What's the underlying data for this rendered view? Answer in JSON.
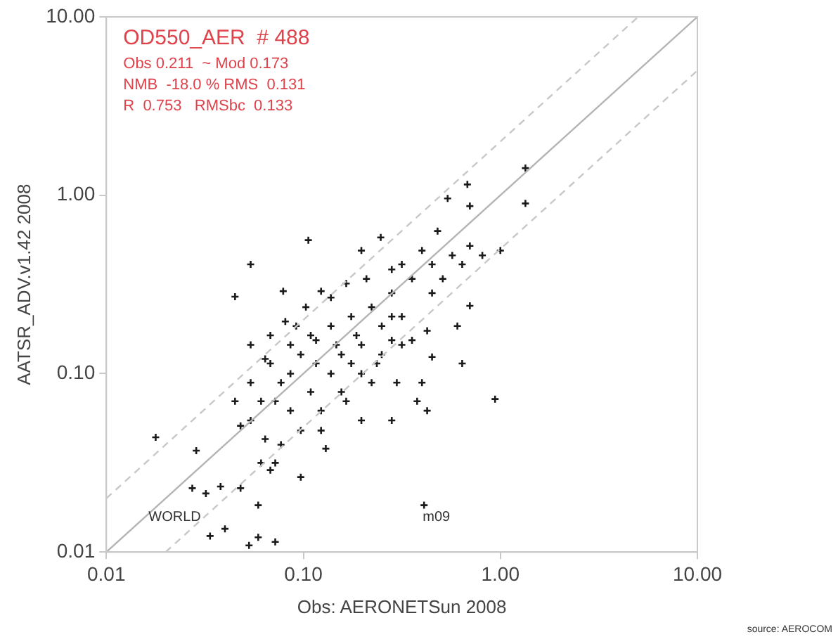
{
  "chart_data": {
    "type": "scatter",
    "title": "OD550_AER  # 488",
    "xlabel": "Obs: AERONETSun 2008",
    "ylabel": "AATSR_ADV.v1.42 2008",
    "annotations": [
      "Obs 0.211  ~ Mod 0.173",
      "NMB  -18.0 % RMS  0.131",
      "R  0.753   RMSbc  0.133",
      "WORLD",
      "m09",
      "source: AEROCOM"
    ],
    "log": "xy",
    "grid": false,
    "legend": false,
    "xlim": [
      0.01,
      10
    ],
    "ylim": [
      0.01,
      10
    ],
    "xticks": [
      {
        "value": 0.01,
        "label": "0.01"
      },
      {
        "value": 0.1,
        "label": "0.10"
      },
      {
        "value": 1,
        "label": "1.00"
      },
      {
        "value": 10,
        "label": "10.00"
      }
    ],
    "yticks": [
      {
        "value": 0.01,
        "label": "0.01"
      },
      {
        "value": 0.1,
        "label": "0.10"
      },
      {
        "value": 1,
        "label": "1.00"
      },
      {
        "value": 10,
        "label": "10.00"
      }
    ],
    "series": [
      {
        "type": "line",
        "marker": "none",
        "color": "#b4b4b4",
        "line_style": "solid",
        "x": [
          0.01,
          10
        ],
        "values": [
          0.01,
          10
        ]
      },
      {
        "type": "line",
        "marker": "none",
        "color": "#c8c8c8",
        "line_style": "dashed",
        "x": [
          0.01,
          5
        ],
        "values": [
          0.02,
          10
        ]
      },
      {
        "type": "line",
        "marker": "none",
        "color": "#c8c8c8",
        "line_style": "dashed",
        "x": [
          0.02,
          10
        ],
        "values": [
          0.01,
          5
        ]
      },
      {
        "type": "scatter",
        "marker": "cross",
        "color": "#1a1a1a",
        "x": [
          1.34,
          1.34,
          0.68,
          0.54,
          0.7,
          0.106,
          0.054,
          0.045,
          0.079,
          0.123,
          0.197,
          0.247,
          0.48,
          0.7,
          1.0,
          0.7,
          0.64,
          0.94,
          0.0178,
          0.0286,
          0.41,
          0.0336,
          0.04,
          0.053,
          0.059,
          0.072,
          0.032,
          0.038,
          0.048,
          0.059,
          0.0273,
          0.068,
          0.097,
          0.13,
          0.197,
          0.281,
          0.425,
          0.378,
          0.298,
          0.4,
          0.45,
          0.605,
          0.425,
          0.316,
          0.25,
          0.197,
          0.156,
          0.123,
          0.097,
          0.077,
          0.061,
          0.048,
          0.045,
          0.054,
          0.068,
          0.086,
          0.109,
          0.138,
          0.175,
          0.222,
          0.281,
          0.356,
          0.45,
          0.57,
          0.316,
          0.4,
          0.281,
          0.209,
          0.165,
          0.138,
          0.103,
          0.081,
          0.068,
          0.054,
          0.064,
          0.086,
          0.116,
          0.156,
          0.197,
          0.25,
          0.316,
          0.186,
          0.147,
          0.116,
          0.097,
          0.077,
          0.061,
          0.054,
          0.064,
          0.086,
          0.109,
          0.138,
          0.175,
          0.236,
          0.281,
          0.356,
          0.45,
          0.51,
          0.64,
          0.81,
          0.281,
          0.222,
          0.165,
          0.072,
          0.123,
          0.072,
          0.092
        ],
        "values": [
          1.42,
          0.9,
          1.15,
          0.96,
          0.87,
          0.56,
          0.41,
          0.27,
          0.29,
          0.29,
          0.49,
          0.58,
          0.63,
          0.52,
          0.49,
          0.24,
          0.114,
          0.072,
          0.044,
          0.037,
          0.0183,
          0.0123,
          0.0135,
          0.0109,
          0.0121,
          0.0114,
          0.0213,
          0.0233,
          0.0228,
          0.0183,
          0.0228,
          0.0288,
          0.0263,
          0.038,
          0.0547,
          0.0547,
          0.062,
          0.07,
          0.089,
          0.089,
          0.124,
          0.185,
          0.174,
          0.145,
          0.128,
          0.1,
          0.079,
          0.062,
          0.048,
          0.04,
          0.0316,
          0.051,
          0.07,
          0.089,
          0.114,
          0.145,
          0.164,
          0.185,
          0.209,
          0.236,
          0.283,
          0.34,
          0.41,
          0.46,
          0.41,
          0.49,
          0.384,
          0.34,
          0.32,
          0.267,
          0.236,
          0.196,
          0.164,
          0.145,
          0.121,
          0.1,
          0.114,
          0.128,
          0.145,
          0.185,
          0.209,
          0.164,
          0.145,
          0.154,
          0.128,
          0.089,
          0.07,
          0.0547,
          0.043,
          0.062,
          0.079,
          0.1,
          0.114,
          0.114,
          0.154,
          0.154,
          0.283,
          0.34,
          0.41,
          0.46,
          0.209,
          0.089,
          0.07,
          0.07,
          0.048,
          0.0316,
          0.185
        ]
      }
    ]
  }
}
